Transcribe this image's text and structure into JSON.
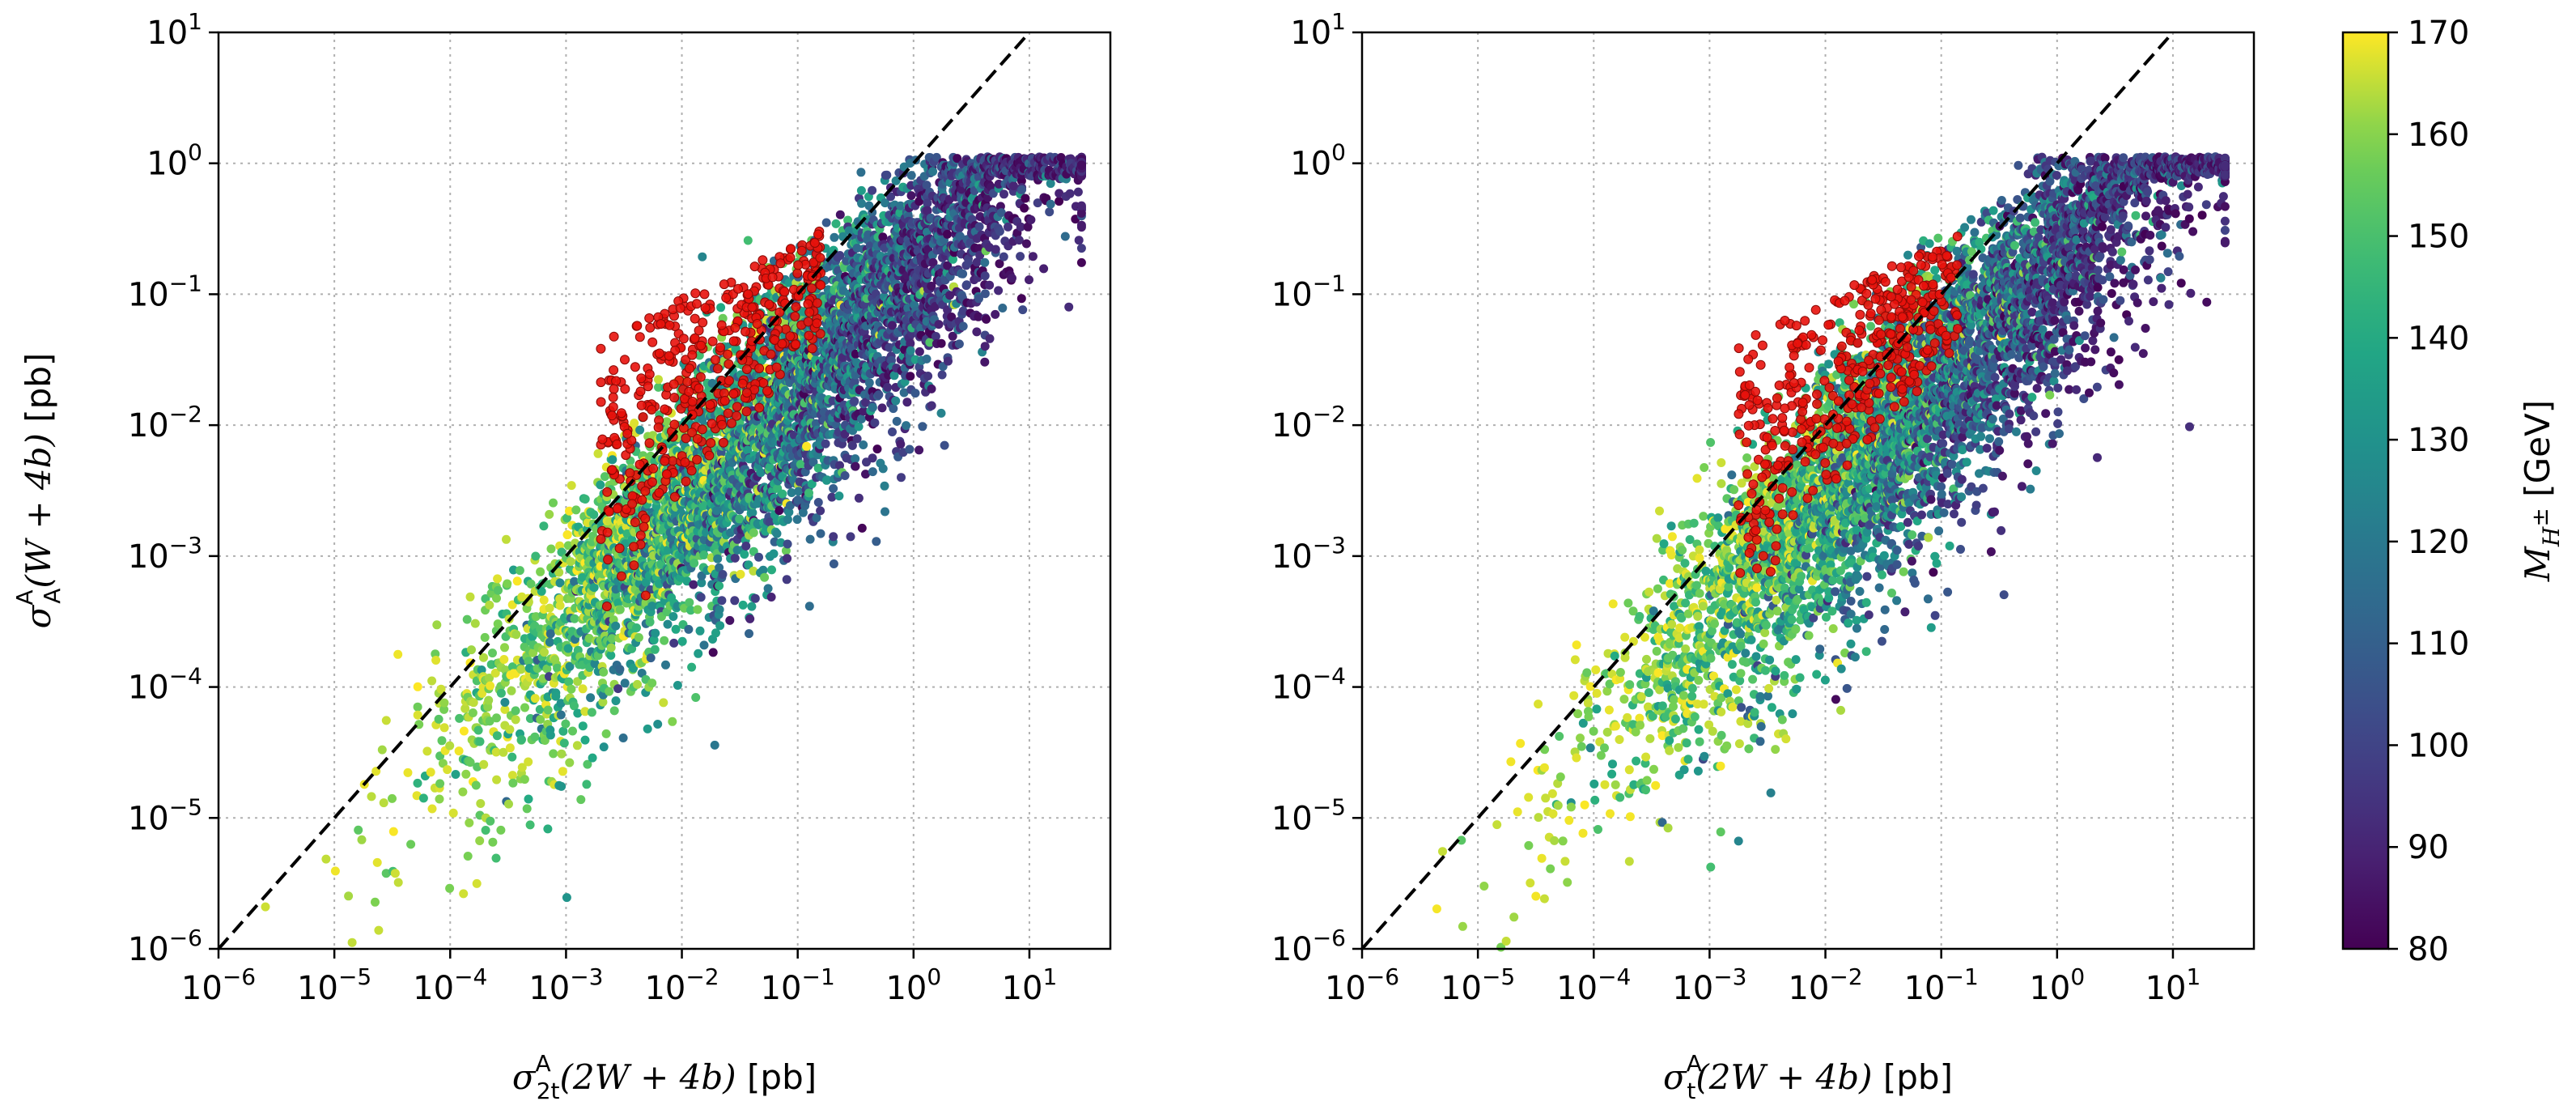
{
  "chart_data": [
    {
      "type": "scatter",
      "panel": "left",
      "xscale": "log",
      "yscale": "log",
      "xlim": [
        1e-06,
        50
      ],
      "ylim": [
        1e-06,
        10
      ],
      "grid": true,
      "x_ticks": [
        {
          "base": "10",
          "exp": "−6"
        },
        {
          "base": "10",
          "exp": "−5"
        },
        {
          "base": "10",
          "exp": "−4"
        },
        {
          "base": "10",
          "exp": "−3"
        },
        {
          "base": "10",
          "exp": "−2"
        },
        {
          "base": "10",
          "exp": "−1"
        },
        {
          "base": "10",
          "exp": "0"
        },
        {
          "base": "10",
          "exp": "1"
        }
      ],
      "y_ticks": [
        {
          "base": "10",
          "exp": "−6"
        },
        {
          "base": "10",
          "exp": "−5"
        },
        {
          "base": "10",
          "exp": "−4"
        },
        {
          "base": "10",
          "exp": "−3"
        },
        {
          "base": "10",
          "exp": "−2"
        },
        {
          "base": "10",
          "exp": "−1"
        },
        {
          "base": "10",
          "exp": "0"
        },
        {
          "base": "10",
          "exp": "1"
        }
      ],
      "xlabel": {
        "sym": "σ",
        "sub": "2t",
        "sup": "A",
        "arg": "(2W + 4b)",
        "unit": " [pb]"
      },
      "ylabel": {
        "sym": "σ",
        "sub": "A",
        "sup": "A",
        "arg": "(W + 4b)",
        "unit": " [pb]"
      },
      "reference_line": "y = x (dashed)",
      "highlight_color": "#e8120c",
      "n_points": 5200,
      "seed": 11
    },
    {
      "type": "scatter",
      "panel": "right",
      "xscale": "log",
      "yscale": "log",
      "xlim": [
        1e-06,
        50
      ],
      "ylim": [
        1e-06,
        10
      ],
      "grid": true,
      "x_ticks": [
        {
          "base": "10",
          "exp": "−6"
        },
        {
          "base": "10",
          "exp": "−5"
        },
        {
          "base": "10",
          "exp": "−4"
        },
        {
          "base": "10",
          "exp": "−3"
        },
        {
          "base": "10",
          "exp": "−2"
        },
        {
          "base": "10",
          "exp": "−1"
        },
        {
          "base": "10",
          "exp": "0"
        },
        {
          "base": "10",
          "exp": "1"
        }
      ],
      "y_ticks": [
        {
          "base": "10",
          "exp": "−6"
        },
        {
          "base": "10",
          "exp": "−5"
        },
        {
          "base": "10",
          "exp": "−4"
        },
        {
          "base": "10",
          "exp": "−3"
        },
        {
          "base": "10",
          "exp": "−2"
        },
        {
          "base": "10",
          "exp": "−1"
        },
        {
          "base": "10",
          "exp": "0"
        },
        {
          "base": "10",
          "exp": "1"
        }
      ],
      "xlabel": {
        "sym": "σ",
        "sub": "t",
        "sup": "A",
        "arg": "(2W + 4b)",
        "unit": " [pb]"
      },
      "ylabel": null,
      "reference_line": "y = x (dashed)",
      "highlight_color": "#e8120c",
      "n_points": 5200,
      "seed": 29
    }
  ],
  "colorbar": {
    "label": {
      "sym": "M",
      "sub": "H",
      "subsup": "±",
      "unit": " [GeV]"
    },
    "min": 80,
    "max": 170,
    "ticks": [
      "80",
      "90",
      "100",
      "110",
      "120",
      "130",
      "140",
      "150",
      "160",
      "170"
    ],
    "colormap": "viridis"
  }
}
